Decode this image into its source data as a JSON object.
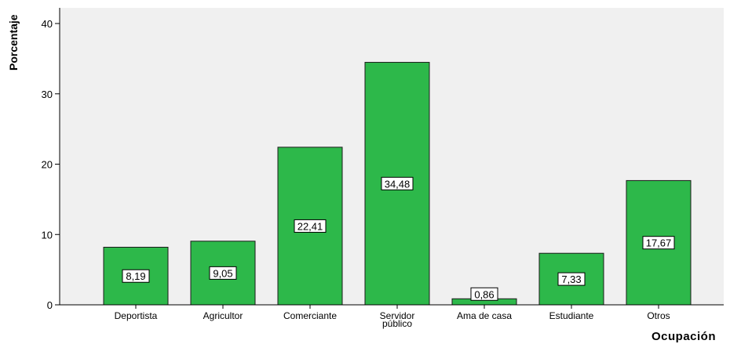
{
  "chart_data": {
    "type": "bar",
    "xlabel": "Ocupación",
    "ylabel": "Porcentaje",
    "ylim": [
      0,
      40
    ],
    "yticks": [
      0,
      10,
      20,
      30,
      40
    ],
    "grid": false,
    "categories": [
      [
        "Deportista"
      ],
      [
        "Agricultor"
      ],
      [
        "Comerciante"
      ],
      [
        "Servidor",
        "público"
      ],
      [
        "Ama de casa"
      ],
      [
        "Estudiante"
      ],
      [
        "Otros"
      ]
    ],
    "values": [
      8.19,
      9.05,
      22.41,
      34.48,
      0.86,
      7.33,
      17.67
    ],
    "data_labels": [
      "8,19",
      "9,05",
      "22,41",
      "34,48",
      "0,86",
      "7,33",
      "17,67"
    ],
    "colors": {
      "bar": "#2db84a",
      "bar_stroke": "#1a1a1a",
      "plot_background": "#f0f0f0",
      "label_box": "#ffffff"
    }
  }
}
